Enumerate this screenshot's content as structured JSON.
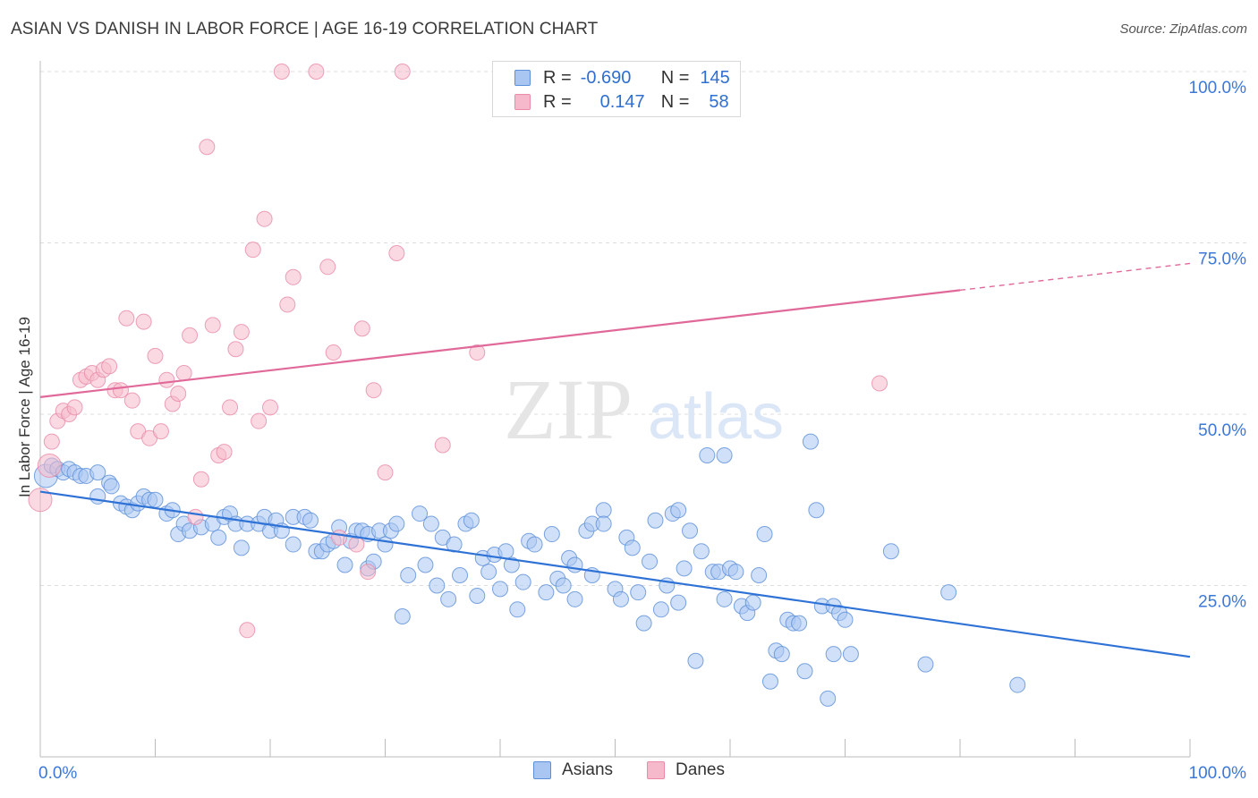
{
  "title": "ASIAN VS DANISH IN LABOR FORCE | AGE 16-19 CORRELATION CHART",
  "source": "Source: ZipAtlas.com",
  "watermark": {
    "zip": "ZIP",
    "atlas": "atlas"
  },
  "legend": {
    "rows": [
      {
        "r_label": "R =",
        "r_value": "-0.690",
        "n_label": "N =",
        "n_value": "145"
      },
      {
        "r_label": "R =",
        "r_value": "0.147",
        "n_label": "N =",
        "n_value": "58"
      }
    ]
  },
  "bottom_legend": [
    "Asians",
    "Danes"
  ],
  "colors": {
    "asians_fill": "#a9c6f2",
    "asians_stroke": "#5b8fd8",
    "asians_line": "#2f72d6",
    "danes_fill": "#f6b9cb",
    "danes_stroke": "#e98aa8",
    "danes_line": "#e0699a",
    "axis_label": "#3b78d8",
    "grid": "#dddddd"
  },
  "chart_data": {
    "type": "scatter",
    "title": "ASIAN VS DANISH IN LABOR FORCE | AGE 16-19 CORRELATION CHART",
    "xlabel": "",
    "ylabel": "In Labor Force | Age 16-19",
    "xlim": [
      0,
      100
    ],
    "ylim": [
      0,
      105
    ],
    "x_tick_labels": [
      "0.0%",
      "100.0%"
    ],
    "y_tick_labels": [
      "25.0%",
      "50.0%",
      "75.0%",
      "100.0%"
    ],
    "y_ticks": [
      25,
      50,
      75,
      100
    ],
    "grid": true,
    "legend_position": "top-center",
    "series": [
      {
        "name": "Asians",
        "R": -0.69,
        "N": 145,
        "trend": {
          "x": [
            0,
            100
          ],
          "y": [
            38.7,
            14.6
          ]
        },
        "points": [
          [
            0.5,
            41
          ],
          [
            1,
            42.5
          ],
          [
            1.5,
            42
          ],
          [
            2,
            41.5
          ],
          [
            2.5,
            42
          ],
          [
            3,
            41.5
          ],
          [
            3.5,
            41
          ],
          [
            4,
            41
          ],
          [
            5,
            41.5
          ],
          [
            5,
            38
          ],
          [
            6,
            40
          ],
          [
            6.2,
            39.5
          ],
          [
            7,
            37
          ],
          [
            7.5,
            36.5
          ],
          [
            8,
            36
          ],
          [
            8.5,
            37
          ],
          [
            9,
            38
          ],
          [
            9.5,
            37.5
          ],
          [
            10,
            37.5
          ],
          [
            11,
            35.5
          ],
          [
            11.5,
            36
          ],
          [
            12,
            32.5
          ],
          [
            12.5,
            34
          ],
          [
            13,
            33
          ],
          [
            14,
            33.5
          ],
          [
            15,
            34
          ],
          [
            15.5,
            32
          ],
          [
            16,
            35
          ],
          [
            16.5,
            35.5
          ],
          [
            17,
            34
          ],
          [
            17.5,
            30.5
          ],
          [
            18,
            34
          ],
          [
            19,
            34
          ],
          [
            19.5,
            35
          ],
          [
            20,
            33
          ],
          [
            20.5,
            34.5
          ],
          [
            21,
            33
          ],
          [
            22,
            31
          ],
          [
            22,
            35
          ],
          [
            23,
            35
          ],
          [
            23.5,
            34.5
          ],
          [
            24,
            30
          ],
          [
            24.5,
            30
          ],
          [
            25,
            31
          ],
          [
            25.5,
            31.5
          ],
          [
            26,
            33.5
          ],
          [
            26.5,
            28
          ],
          [
            27,
            31.5
          ],
          [
            27.5,
            33
          ],
          [
            28,
            33
          ],
          [
            28.5,
            27.5
          ],
          [
            28.5,
            32.5
          ],
          [
            29,
            28.5
          ],
          [
            29.5,
            33
          ],
          [
            30,
            31
          ],
          [
            30.5,
            33
          ],
          [
            31,
            34
          ],
          [
            31.5,
            20.5
          ],
          [
            32,
            26.5
          ],
          [
            33,
            35.5
          ],
          [
            33.5,
            28
          ],
          [
            34,
            34
          ],
          [
            34.5,
            25
          ],
          [
            35,
            32
          ],
          [
            35.5,
            23
          ],
          [
            36,
            31
          ],
          [
            36.5,
            26.5
          ],
          [
            37,
            34
          ],
          [
            37.5,
            34.5
          ],
          [
            38,
            23.5
          ],
          [
            38.5,
            29
          ],
          [
            39,
            27
          ],
          [
            39.5,
            29.5
          ],
          [
            40,
            24.5
          ],
          [
            40.5,
            30
          ],
          [
            41,
            28
          ],
          [
            41.5,
            21.5
          ],
          [
            42,
            25.5
          ],
          [
            42.5,
            31.5
          ],
          [
            43,
            31
          ],
          [
            44,
            24
          ],
          [
            44.5,
            32.5
          ],
          [
            45,
            26
          ],
          [
            45.5,
            25
          ],
          [
            46,
            29
          ],
          [
            46.5,
            23
          ],
          [
            46.5,
            28
          ],
          [
            47.5,
            33
          ],
          [
            48,
            26.5
          ],
          [
            48,
            34
          ],
          [
            49,
            36
          ],
          [
            49,
            34
          ],
          [
            50,
            24.5
          ],
          [
            50.5,
            23
          ],
          [
            51,
            32
          ],
          [
            51.5,
            30.5
          ],
          [
            52,
            24
          ],
          [
            52.5,
            19.5
          ],
          [
            53,
            28.5
          ],
          [
            53.5,
            34.5
          ],
          [
            54,
            21.5
          ],
          [
            54.5,
            25
          ],
          [
            55,
            35.5
          ],
          [
            55.5,
            36
          ],
          [
            55.5,
            22.5
          ],
          [
            56,
            27.5
          ],
          [
            56.5,
            33
          ],
          [
            57,
            14
          ],
          [
            57.5,
            30
          ],
          [
            58,
            44
          ],
          [
            58.5,
            27
          ],
          [
            59,
            27
          ],
          [
            59.5,
            23
          ],
          [
            59.5,
            44
          ],
          [
            60,
            27.5
          ],
          [
            60.5,
            27
          ],
          [
            61,
            22
          ],
          [
            61.5,
            21
          ],
          [
            62,
            22.5
          ],
          [
            62.5,
            26.5
          ],
          [
            63,
            32.5
          ],
          [
            63.5,
            11
          ],
          [
            64,
            15.5
          ],
          [
            64.5,
            15
          ],
          [
            65,
            20
          ],
          [
            65.5,
            19.5
          ],
          [
            66,
            19.5
          ],
          [
            66.5,
            12.5
          ],
          [
            67,
            46
          ],
          [
            67.5,
            36
          ],
          [
            68,
            22
          ],
          [
            68.5,
            8.5
          ],
          [
            69,
            15
          ],
          [
            69,
            22
          ],
          [
            69.5,
            21
          ],
          [
            70,
            20
          ],
          [
            70.5,
            15
          ],
          [
            74,
            30
          ],
          [
            77,
            13.5
          ],
          [
            79,
            24
          ],
          [
            85,
            10.5
          ]
        ]
      },
      {
        "name": "Danes",
        "R": 0.147,
        "N": 58,
        "trend": {
          "x": [
            0,
            100
          ],
          "y": [
            52.5,
            72
          ]
        },
        "points": [
          [
            0,
            37.5
          ],
          [
            0.8,
            42.5
          ],
          [
            1,
            46
          ],
          [
            1.5,
            49
          ],
          [
            2,
            50.5
          ],
          [
            2.5,
            50
          ],
          [
            3,
            51
          ],
          [
            3.5,
            55
          ],
          [
            4,
            55.5
          ],
          [
            4.5,
            56
          ],
          [
            5,
            55
          ],
          [
            5.5,
            56.5
          ],
          [
            6,
            57
          ],
          [
            6.5,
            53.5
          ],
          [
            7,
            53.5
          ],
          [
            7.5,
            64
          ],
          [
            8,
            52
          ],
          [
            8.5,
            47.5
          ],
          [
            9,
            63.5
          ],
          [
            9.5,
            46.5
          ],
          [
            10,
            58.5
          ],
          [
            10.5,
            47.5
          ],
          [
            11,
            55
          ],
          [
            11.5,
            51.5
          ],
          [
            12,
            53
          ],
          [
            12.5,
            56
          ],
          [
            13,
            61.5
          ],
          [
            13.5,
            35
          ],
          [
            14,
            40.5
          ],
          [
            14.5,
            89
          ],
          [
            15,
            63
          ],
          [
            15.5,
            44
          ],
          [
            16,
            44.5
          ],
          [
            16.5,
            51
          ],
          [
            17,
            59.5
          ],
          [
            17.5,
            62
          ],
          [
            18,
            18.5
          ],
          [
            18.5,
            74
          ],
          [
            19,
            49
          ],
          [
            19.5,
            78.5
          ],
          [
            20,
            51
          ],
          [
            21,
            100
          ],
          [
            21.5,
            66
          ],
          [
            22,
            70
          ],
          [
            24,
            100
          ],
          [
            25,
            71.5
          ],
          [
            25.5,
            59
          ],
          [
            26,
            32
          ],
          [
            27.5,
            31
          ],
          [
            28,
            62.5
          ],
          [
            28.5,
            27
          ],
          [
            29,
            53.5
          ],
          [
            30,
            41.5
          ],
          [
            31,
            73.5
          ],
          [
            31.5,
            100
          ],
          [
            35,
            45.5
          ],
          [
            38,
            59
          ],
          [
            73,
            54.5
          ]
        ]
      }
    ]
  }
}
